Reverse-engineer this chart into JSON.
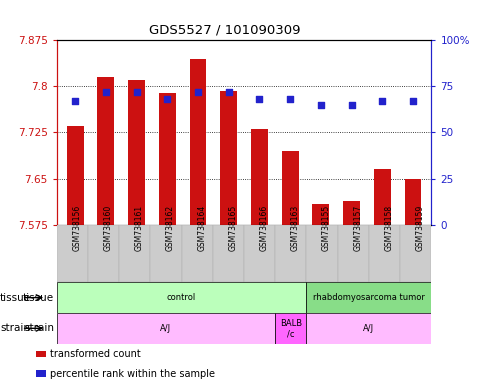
{
  "title": "GDS5527 / 101090309",
  "samples": [
    "GSM738156",
    "GSM738160",
    "GSM738161",
    "GSM738162",
    "GSM738164",
    "GSM738165",
    "GSM738166",
    "GSM738163",
    "GSM738155",
    "GSM738157",
    "GSM738158",
    "GSM738159"
  ],
  "transformed_count": [
    7.735,
    7.815,
    7.81,
    7.79,
    7.845,
    7.793,
    7.73,
    7.695,
    7.608,
    7.613,
    7.665,
    7.65
  ],
  "percentile_rank": [
    67,
    72,
    72,
    68,
    72,
    72,
    68,
    68,
    65,
    65,
    67,
    67
  ],
  "ymin": 7.575,
  "ymax": 7.875,
  "yticks": [
    7.575,
    7.65,
    7.725,
    7.8,
    7.875
  ],
  "right_yticks": [
    0,
    25,
    50,
    75,
    100
  ],
  "bar_color": "#cc1111",
  "dot_color": "#2222cc",
  "tissue_groups": [
    {
      "label": "control",
      "start": 0,
      "end": 8,
      "color": "#bbffbb"
    },
    {
      "label": "rhabdomyosarcoma tumor",
      "start": 8,
      "end": 12,
      "color": "#88dd88"
    }
  ],
  "strain_groups": [
    {
      "label": "A/J",
      "start": 0,
      "end": 7,
      "color": "#ffbbff"
    },
    {
      "label": "BALB\n/c",
      "start": 7,
      "end": 8,
      "color": "#ff66ff"
    },
    {
      "label": "A/J",
      "start": 8,
      "end": 12,
      "color": "#ffbbff"
    }
  ],
  "tissue_label": "tissue",
  "strain_label": "strain",
  "legend_items": [
    {
      "color": "#cc1111",
      "label": "transformed count"
    },
    {
      "color": "#2222cc",
      "label": "percentile rank within the sample"
    }
  ],
  "xlabel_area_bg": "#cccccc"
}
